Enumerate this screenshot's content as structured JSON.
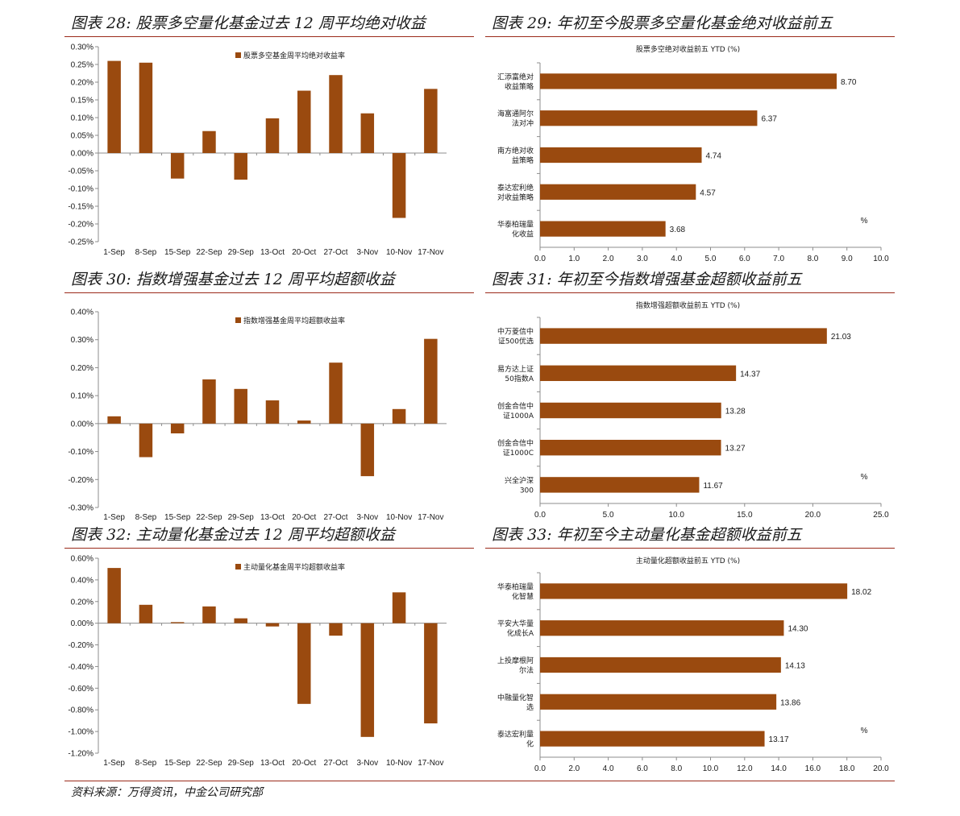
{
  "theme": {
    "bar_color": "#9a4a0f",
    "rule_color": "#9b2a1a"
  },
  "figures": [
    {
      "title": "图表 28:  股票多空量化基金过去 12 周平均绝对收益"
    },
    {
      "title": "图表 29:  年初至今股票多空量化基金绝对收益前五"
    },
    {
      "title": "图表 30:  指数增强基金过去 12 周平均超额收益"
    },
    {
      "title": "图表 31:  年初至今指数增强基金超额收益前五"
    },
    {
      "title": "图表 32:  主动量化基金过去 12 周平均超额收益"
    },
    {
      "title": "图表 33:  年初至今主动量化基金超额收益前五"
    }
  ],
  "source": "资料来源：万得资讯，中金公司研究部",
  "chart_data": [
    {
      "type": "bar",
      "legend": "股票多空基金周平均绝对收益率",
      "legend_position": "top-center",
      "categories": [
        "1-Sep",
        "8-Sep",
        "15-Sep",
        "22-Sep",
        "29-Sep",
        "13-Oct",
        "20-Oct",
        "27-Oct",
        "3-Nov",
        "10-Nov",
        "17-Nov"
      ],
      "series": [
        {
          "name": "股票多空基金周平均绝对收益率",
          "values": [
            0.26,
            0.255,
            -0.072,
            0.062,
            -0.075,
            0.098,
            0.176,
            0.22,
            0.112,
            -0.183,
            0.181
          ]
        }
      ],
      "ylim": [
        -0.25,
        0.3
      ],
      "yticks": [
        "0.30%",
        "0.25%",
        "0.20%",
        "0.15%",
        "0.10%",
        "0.05%",
        "0.00%",
        "-0.05%",
        "-0.10%",
        "-0.15%",
        "-0.20%",
        "-0.25%"
      ],
      "unit": "%",
      "grid": false
    },
    {
      "type": "bar",
      "orientation": "horizontal",
      "title": "股票多空绝对收益前五 YTD (%)",
      "categories": [
        "汇添富绝对收益策略",
        "海富通阿尔法对冲",
        "南方绝对收益策略",
        "泰达宏利绝对收益策略",
        "华泰柏瑞量化收益"
      ],
      "category_lines": [
        [
          "汇添富绝对",
          "收益策略"
        ],
        [
          "海富通阿尔",
          "法对冲"
        ],
        [
          "南方绝对收",
          "益策略"
        ],
        [
          "泰达宏利绝",
          "对收益策略"
        ],
        [
          "华泰柏瑞量",
          "化收益"
        ]
      ],
      "values": [
        8.7,
        6.37,
        4.74,
        4.57,
        3.68
      ],
      "value_labels": [
        "8.70",
        "6.37",
        "4.74",
        "4.57",
        "3.68"
      ],
      "xlim": [
        0,
        10
      ],
      "xticks": [
        "0.0",
        "1.0",
        "2.0",
        "3.0",
        "4.0",
        "5.0",
        "6.0",
        "7.0",
        "8.0",
        "9.0",
        "10.0"
      ],
      "unit_label": "%",
      "grid": false
    },
    {
      "type": "bar",
      "legend": "指数增强基金周平均超额收益率",
      "legend_position": "top-center",
      "categories": [
        "1-Sep",
        "8-Sep",
        "15-Sep",
        "22-Sep",
        "29-Sep",
        "13-Oct",
        "20-Oct",
        "27-Oct",
        "3-Nov",
        "10-Nov",
        "17-Nov"
      ],
      "series": [
        {
          "name": "指数增强基金周平均超额收益率",
          "values": [
            0.026,
            -0.12,
            -0.035,
            0.158,
            0.124,
            0.083,
            0.011,
            0.218,
            -0.188,
            0.052,
            0.303
          ]
        }
      ],
      "ylim": [
        -0.3,
        0.4
      ],
      "yticks": [
        "0.40%",
        "0.30%",
        "0.20%",
        "0.10%",
        "0.00%",
        "-0.10%",
        "-0.20%",
        "-0.30%"
      ],
      "unit": "%",
      "grid": false
    },
    {
      "type": "bar",
      "orientation": "horizontal",
      "title": "指数增强超额收益前五 YTD (%)",
      "categories": [
        "中万菱信中证500优选",
        "易方达上证50指数A",
        "创金合信中证1000A",
        "创金合信中证1000C",
        "兴全沪深300"
      ],
      "category_lines": [
        [
          "中万菱信中",
          "证500优选"
        ],
        [
          "易方达上证",
          "50指数A"
        ],
        [
          "创金合信中",
          "证1000A"
        ],
        [
          "创金合信中",
          "证1000C"
        ],
        [
          "兴全沪深",
          "300"
        ]
      ],
      "values": [
        21.03,
        14.37,
        13.28,
        13.27,
        11.67
      ],
      "value_labels": [
        "21.03",
        "14.37",
        "13.28",
        "13.27",
        "11.67"
      ],
      "xlim": [
        0,
        25
      ],
      "xticks": [
        "0.0",
        "5.0",
        "10.0",
        "15.0",
        "20.0",
        "25.0"
      ],
      "unit_label": "%",
      "grid": false
    },
    {
      "type": "bar",
      "legend": "主动量化基金周平均超额收益率",
      "legend_position": "top-center",
      "categories": [
        "1-Sep",
        "8-Sep",
        "15-Sep",
        "22-Sep",
        "29-Sep",
        "13-Oct",
        "20-Oct",
        "27-Oct",
        "3-Nov",
        "10-Nov",
        "17-Nov"
      ],
      "series": [
        {
          "name": "主动量化基金周平均超额收益率",
          "values": [
            0.51,
            0.17,
            0.01,
            0.155,
            0.045,
            -0.03,
            -0.745,
            -0.115,
            -1.05,
            0.285,
            -0.925
          ]
        }
      ],
      "ylim": [
        -1.2,
        0.6
      ],
      "yticks": [
        "0.60%",
        "0.40%",
        "0.20%",
        "0.00%",
        "-0.20%",
        "-0.40%",
        "-0.60%",
        "-0.80%",
        "-1.00%",
        "-1.20%"
      ],
      "unit": "%",
      "grid": false
    },
    {
      "type": "bar",
      "orientation": "horizontal",
      "title": "主动量化超额收益前五 YTD (%)",
      "categories": [
        "华泰柏瑞量化智慧",
        "平安大华量化成长A",
        "上投摩根阿尔法",
        "中融量化智选",
        "泰达宏利量化"
      ],
      "category_lines": [
        [
          "华泰柏瑞量",
          "化智慧"
        ],
        [
          "平安大华量",
          "化成长A"
        ],
        [
          "上投摩根阿",
          "尔法"
        ],
        [
          "中融量化智",
          "选"
        ],
        [
          "泰达宏利量",
          "化"
        ]
      ],
      "values": [
        18.02,
        14.3,
        14.13,
        13.86,
        13.17
      ],
      "value_labels": [
        "18.02",
        "14.30",
        "14.13",
        "13.86",
        "13.17"
      ],
      "xlim": [
        0,
        20
      ],
      "xticks": [
        "0.0",
        "2.0",
        "4.0",
        "6.0",
        "8.0",
        "10.0",
        "12.0",
        "14.0",
        "16.0",
        "18.0",
        "20.0"
      ],
      "unit_label": "%",
      "grid": false
    }
  ]
}
